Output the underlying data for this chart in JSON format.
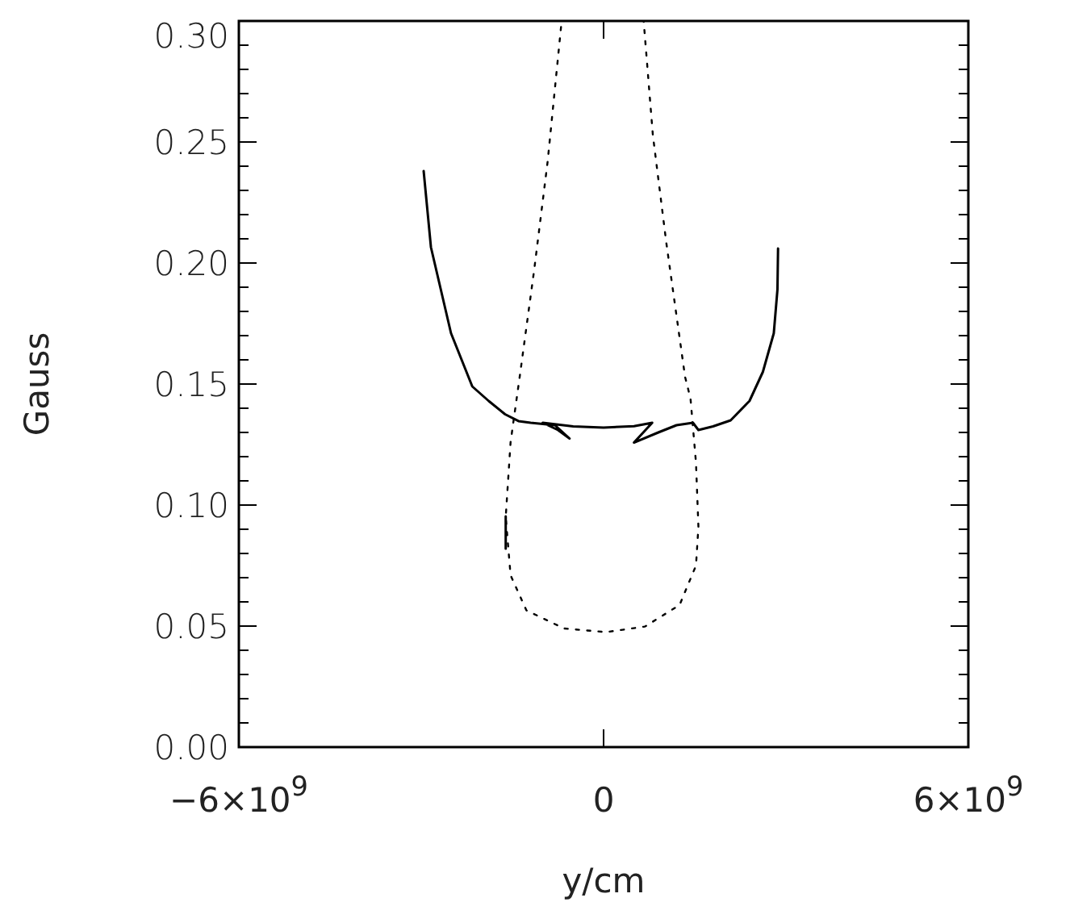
{
  "chart_data": {
    "type": "line",
    "xlabel": "y/cm",
    "ylabel": "Gauss",
    "xlim": [
      -6000000000.0,
      6000000000.0
    ],
    "ylim": [
      0,
      0.3
    ],
    "xticks": [
      {
        "value": -6000000000.0,
        "label": "−6×10$^{9}$"
      },
      {
        "value": 0,
        "label": "0"
      },
      {
        "value": 6000000000.0,
        "label": "6×10$^{9}$"
      }
    ],
    "yticks": [
      {
        "value": 0,
        "label": "0.00"
      },
      {
        "value": 0.01,
        "label": null
      },
      {
        "value": 0.02,
        "label": null
      },
      {
        "value": 0.03,
        "label": null
      },
      {
        "value": 0.04,
        "label": null
      },
      {
        "value": 0.05,
        "label": "0.05"
      },
      {
        "value": 0.06,
        "label": null
      },
      {
        "value": 0.07,
        "label": null
      },
      {
        "value": 0.08,
        "label": null
      },
      {
        "value": 0.09,
        "label": null
      },
      {
        "value": 0.1,
        "label": "0.10"
      },
      {
        "value": 0.11,
        "label": null
      },
      {
        "value": 0.12,
        "label": null
      },
      {
        "value": 0.13,
        "label": null
      },
      {
        "value": 0.14,
        "label": null
      },
      {
        "value": 0.15,
        "label": "0.15"
      },
      {
        "value": 0.16,
        "label": null
      },
      {
        "value": 0.17,
        "label": null
      },
      {
        "value": 0.18,
        "label": null
      },
      {
        "value": 0.19,
        "label": null
      },
      {
        "value": 0.2,
        "label": "0.20"
      },
      {
        "value": 0.21,
        "label": null
      },
      {
        "value": 0.22,
        "label": null
      },
      {
        "value": 0.23,
        "label": null
      },
      {
        "value": 0.24,
        "label": null
      },
      {
        "value": 0.25,
        "label": "0.25"
      },
      {
        "value": 0.26,
        "label": null
      },
      {
        "value": 0.27,
        "label": null
      },
      {
        "value": 0.28,
        "label": null
      },
      {
        "value": 0.29,
        "label": null
      },
      {
        "value": 0.3,
        "label": "0.30"
      }
    ],
    "series": [
      {
        "color": "#000000",
        "line_style": "solid",
        "x": [
          -2960000000.0,
          -2840000000.0,
          -2510000000.0,
          -2160000000.0,
          -1890000000.0,
          -1620000000.0,
          -1400000000.0,
          -1200000000.0,
          -800000000.0,
          -560000000.0,
          -750000000.0,
          -1000000000.0,
          -500000000.0,
          0,
          500000000.0,
          800000000.0,
          500000000.0,
          900000000.0,
          1200000000.0,
          1470000000.0,
          1560000000.0,
          1800000000.0,
          2090000000.0,
          2400000000.0,
          2620000000.0,
          2800000000.0,
          2860000000.0,
          2870000000.0
        ],
        "values": [
          0.238,
          0.2065,
          0.171,
          0.149,
          0.143,
          0.1375,
          0.1347,
          0.134,
          0.133,
          0.1275,
          0.131,
          0.134,
          0.1325,
          0.132,
          0.1326,
          0.134,
          0.1258,
          0.13,
          0.133,
          0.134,
          0.131,
          0.1325,
          0.135,
          0.143,
          0.155,
          0.171,
          0.189,
          0.206
        ]
      },
      {
        "color": "#000000",
        "line_style": "solid",
        "x": [
          -1610000000.0,
          -1610000000.0
        ],
        "values": [
          0.0953,
          0.082
        ]
      },
      {
        "color": "#000000",
        "line_style": "dotted",
        "x": [
          -700000000.0,
          -920000000.0,
          -1140000000.0,
          -1380000000.0,
          -1530000000.0,
          -1610000000.0,
          -1530000000.0,
          -1270000000.0,
          -650000000.0,
          40000000.0,
          680000000.0,
          1250000000.0,
          1520000000.0,
          1560000000.0,
          1520000000.0,
          1430000000.0,
          1340000000.0,
          1030000000.0,
          810000000.0,
          660000000.0
        ],
        "values": [
          0.2975,
          0.242,
          0.1975,
          0.153,
          0.126,
          0.095,
          0.071,
          0.0565,
          0.049,
          0.0475,
          0.0498,
          0.0587,
          0.075,
          0.091,
          0.1175,
          0.144,
          0.153,
          0.2087,
          0.253,
          0.2998
        ]
      }
    ]
  }
}
